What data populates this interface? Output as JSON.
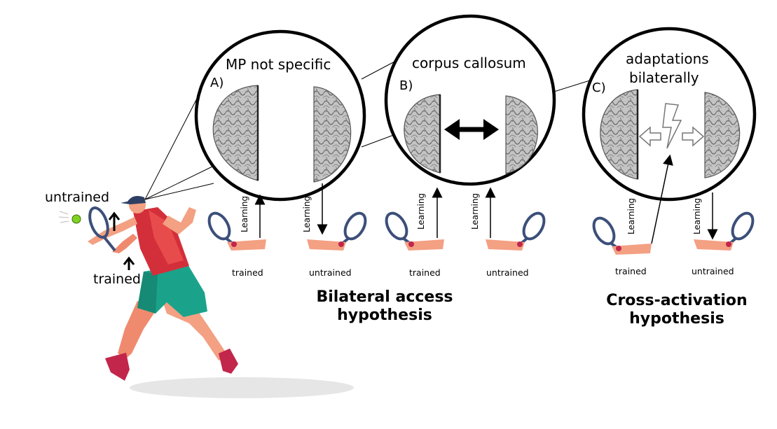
{
  "figure": {
    "player": {
      "label_untrained": "untrained",
      "label_trained": "trained"
    },
    "panels": [
      {
        "letter": "A)",
        "title": "MP not specific",
        "left_caption": "trained",
        "right_caption": "untrained",
        "learning_label": "Learning"
      },
      {
        "letter": "B)",
        "title": "corpus callosum",
        "left_caption": "trained",
        "right_caption": "untrained",
        "learning_label": "Learning"
      },
      {
        "letter": "C)",
        "title_line1": "adaptations",
        "title_line2": "bilaterally",
        "left_caption": "trained",
        "right_caption": "untrained",
        "learning_label": "Learning"
      }
    ],
    "hypotheses": {
      "bilateral_line1": "Bilateral access",
      "bilateral_line2": "hypothesis",
      "cross_line1": "Cross-activation",
      "cross_line2": "hypothesis"
    },
    "colors": {
      "ball": "#7ed321",
      "shirt": "#d32f3a",
      "shorts": "#1aa38a",
      "skin": "#f3a083",
      "racket": "#3c4f7a",
      "brain": "#b8b8b8",
      "shadow": "#e6e6e6"
    }
  }
}
